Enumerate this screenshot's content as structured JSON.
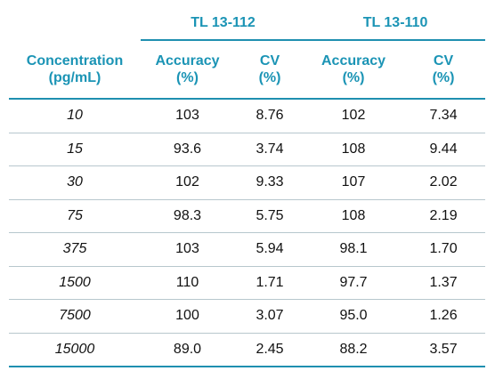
{
  "table": {
    "groups": [
      "TL 13-112",
      "TL 13-110"
    ],
    "columns": [
      {
        "line1": "Concentration",
        "line2": "(pg/mL)"
      },
      {
        "line1": "Accuracy",
        "line2": "(%)"
      },
      {
        "line1": "CV",
        "line2": "(%)"
      },
      {
        "line1": "Accuracy",
        "line2": "(%)"
      },
      {
        "line1": "CV",
        "line2": "(%)"
      }
    ],
    "rows": [
      [
        "10",
        "103",
        "8.76",
        "102",
        "7.34"
      ],
      [
        "15",
        "93.6",
        "3.74",
        "108",
        "9.44"
      ],
      [
        "30",
        "102",
        "9.33",
        "107",
        "2.02"
      ],
      [
        "75",
        "98.3",
        "5.75",
        "108",
        "2.19"
      ],
      [
        "375",
        "103",
        "5.94",
        "98.1",
        "1.70"
      ],
      [
        "1500",
        "110",
        "1.71",
        "97.7",
        "1.37"
      ],
      [
        "7500",
        "100",
        "3.07",
        "95.0",
        "1.26"
      ],
      [
        "15000",
        "89.0",
        "2.45",
        "88.2",
        "3.57"
      ]
    ],
    "colors": {
      "header": "#1b94b5",
      "rule": "#1f8fb0",
      "row_divider": "#b7c7cd",
      "text": "#111111"
    }
  }
}
